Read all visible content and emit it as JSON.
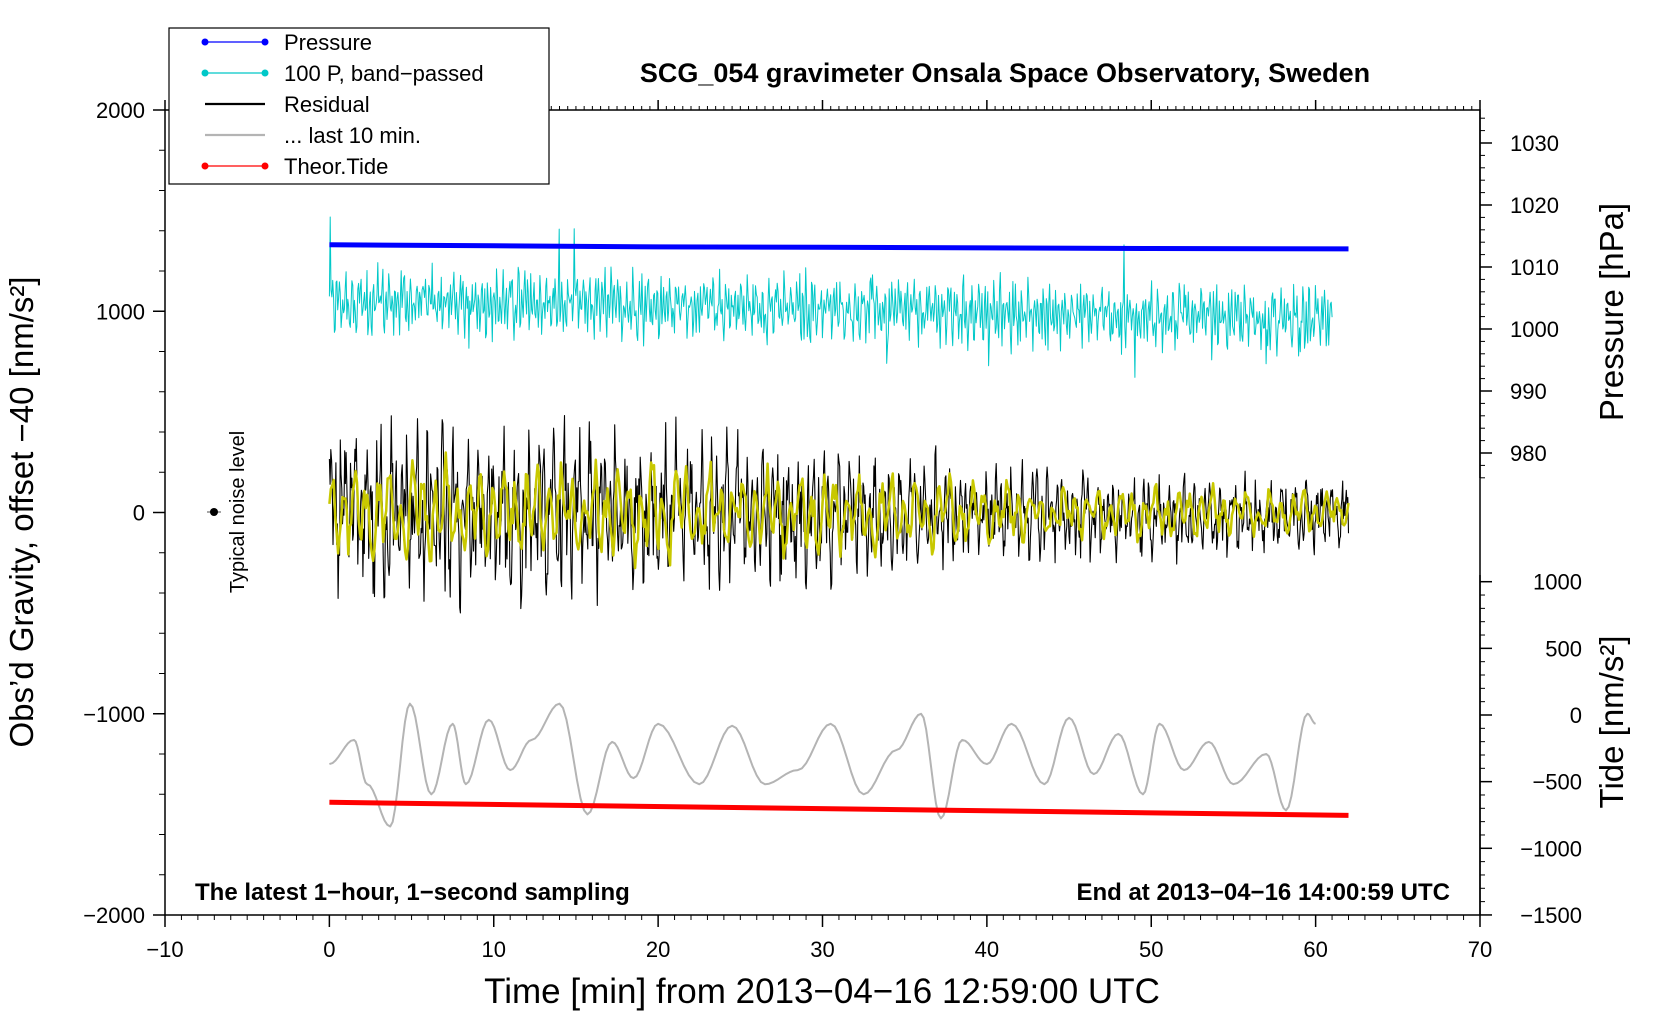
{
  "chart_data": {
    "type": "line",
    "title": "SCG_054 gravimeter Onsala Space Observatory, Sweden",
    "xlabel": "Time [min] from 2013−04−16 12:59:00 UTC",
    "ylabel_left": "Obs’d Gravity, offset −40 [nm/s²]",
    "ylabel_pressure": "Pressure [hPa]",
    "ylabel_tide": "Tide [nm/s²]",
    "xlim": [
      -10,
      70
    ],
    "ylim_left": [
      -2000,
      2000
    ],
    "x_ticks": [
      "−10",
      "0",
      "10",
      "20",
      "30",
      "40",
      "50",
      "60",
      "70"
    ],
    "y_ticks_left": [
      "2000",
      "1000",
      "0",
      "−1000",
      "−2000"
    ],
    "y_ticks_pressure": [
      "1030",
      "1020",
      "1010",
      "1000",
      "990",
      "980"
    ],
    "y_ticks_tide": [
      "1000",
      "500",
      "0",
      "−500",
      "−1000",
      "−1500"
    ],
    "annotations": {
      "bottom_left": "The latest 1−hour, 1−second sampling",
      "bottom_right": "End at 2013−04−16 14:00:59 UTC",
      "noise": "Typical noise level"
    },
    "noise_marker": {
      "x": -7,
      "y": 0
    },
    "legend_position": "top-left",
    "legend": [
      {
        "label": "Pressure",
        "color": "#0000ff",
        "marker": true
      },
      {
        "label": "100 P, band−passed",
        "color": "#00c8c8",
        "marker": true
      },
      {
        "label": "Residual",
        "color": "#000000",
        "marker": false
      },
      {
        "label": "... last 10 min.",
        "color": "#b4b4b4",
        "marker": false
      },
      {
        "label": "Theor.Tide",
        "color": "#ff0000",
        "marker": true
      }
    ],
    "series": [
      {
        "name": "Pressure",
        "color": "#0000ff",
        "axis": "left",
        "x": [
          0,
          10,
          20,
          30,
          40,
          50,
          62
        ],
        "values": [
          1330,
          1325,
          1320,
          1318,
          1315,
          1312,
          1310
        ]
      },
      {
        "name": "100 P, band−passed",
        "color": "#00c8c8",
        "axis": "left",
        "x_range": [
          0,
          61
        ],
        "base": [
          1050,
          1040,
          1030,
          1010,
          990,
          970,
          950
        ],
        "amplitude": 170
      },
      {
        "name": "Residual",
        "color": "#000000",
        "axis": "left",
        "x_range": [
          0,
          62
        ],
        "envelope": [
          700,
          650,
          600,
          500,
          380,
          300,
          280
        ],
        "bias": [
          0,
          -20,
          20,
          -10,
          0,
          -30,
          0
        ]
      },
      {
        "name": "Residual (smoothed)",
        "color": "#c8c800",
        "axis": "left",
        "x_range": [
          0,
          62
        ],
        "envelope": [
          450,
          400,
          380,
          320,
          250,
          200,
          180
        ]
      },
      {
        "name": "... last 10 min.",
        "color": "#b4b4b4",
        "axis": "left",
        "x_range": [
          0,
          60
        ],
        "x": [
          0,
          1.5,
          2.3,
          3.7,
          4.9,
          6.2,
          7.5,
          8.3,
          9.7,
          11,
          12.3,
          14,
          15.7,
          17.2,
          18.5,
          20,
          22.5,
          24.5,
          26.5,
          28.5,
          30.5,
          32.5,
          34.5,
          36,
          37.2,
          38.5,
          40,
          41.5,
          43.5,
          45,
          46.5,
          48,
          49.5,
          50.5,
          52,
          53.5,
          55,
          57,
          58.2,
          59.5,
          60
        ],
        "values": [
          -1250,
          -1130,
          -1350,
          -1560,
          -950,
          -1400,
          -1050,
          -1350,
          -1030,
          -1280,
          -1130,
          -950,
          -1500,
          -1140,
          -1320,
          -1050,
          -1350,
          -1060,
          -1350,
          -1280,
          -1050,
          -1400,
          -1180,
          -1000,
          -1520,
          -1130,
          -1250,
          -1050,
          -1350,
          -1020,
          -1300,
          -1100,
          -1400,
          -1050,
          -1280,
          -1140,
          -1350,
          -1200,
          -1480,
          -1000,
          -1050
        ]
      },
      {
        "name": "Theor.Tide",
        "color": "#ff0000",
        "axis": "left",
        "x": [
          0,
          62
        ],
        "values": [
          -1440,
          -1505
        ]
      }
    ]
  }
}
